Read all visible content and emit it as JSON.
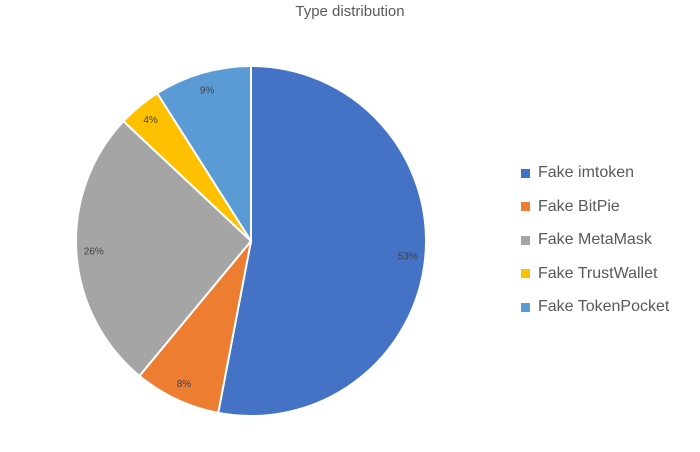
{
  "chart_data": {
    "type": "pie",
    "title": "Type distribution",
    "slices": [
      {
        "name": "Fake imtoken",
        "value": 53,
        "label": "53%",
        "color": "#4472C4"
      },
      {
        "name": "Fake BitPie",
        "value": 8,
        "label": "8%",
        "color": "#ED7D31"
      },
      {
        "name": "Fake MetaMask",
        "value": 26,
        "label": "26%",
        "color": "#A5A5A5"
      },
      {
        "name": "Fake TrustWallet",
        "value": 4,
        "label": "4%",
        "color": "#FFC000"
      },
      {
        "name": "Fake TokenPocket",
        "value": 9,
        "label": "9%",
        "color": "#5B9BD5"
      }
    ],
    "legend_position": "right"
  }
}
